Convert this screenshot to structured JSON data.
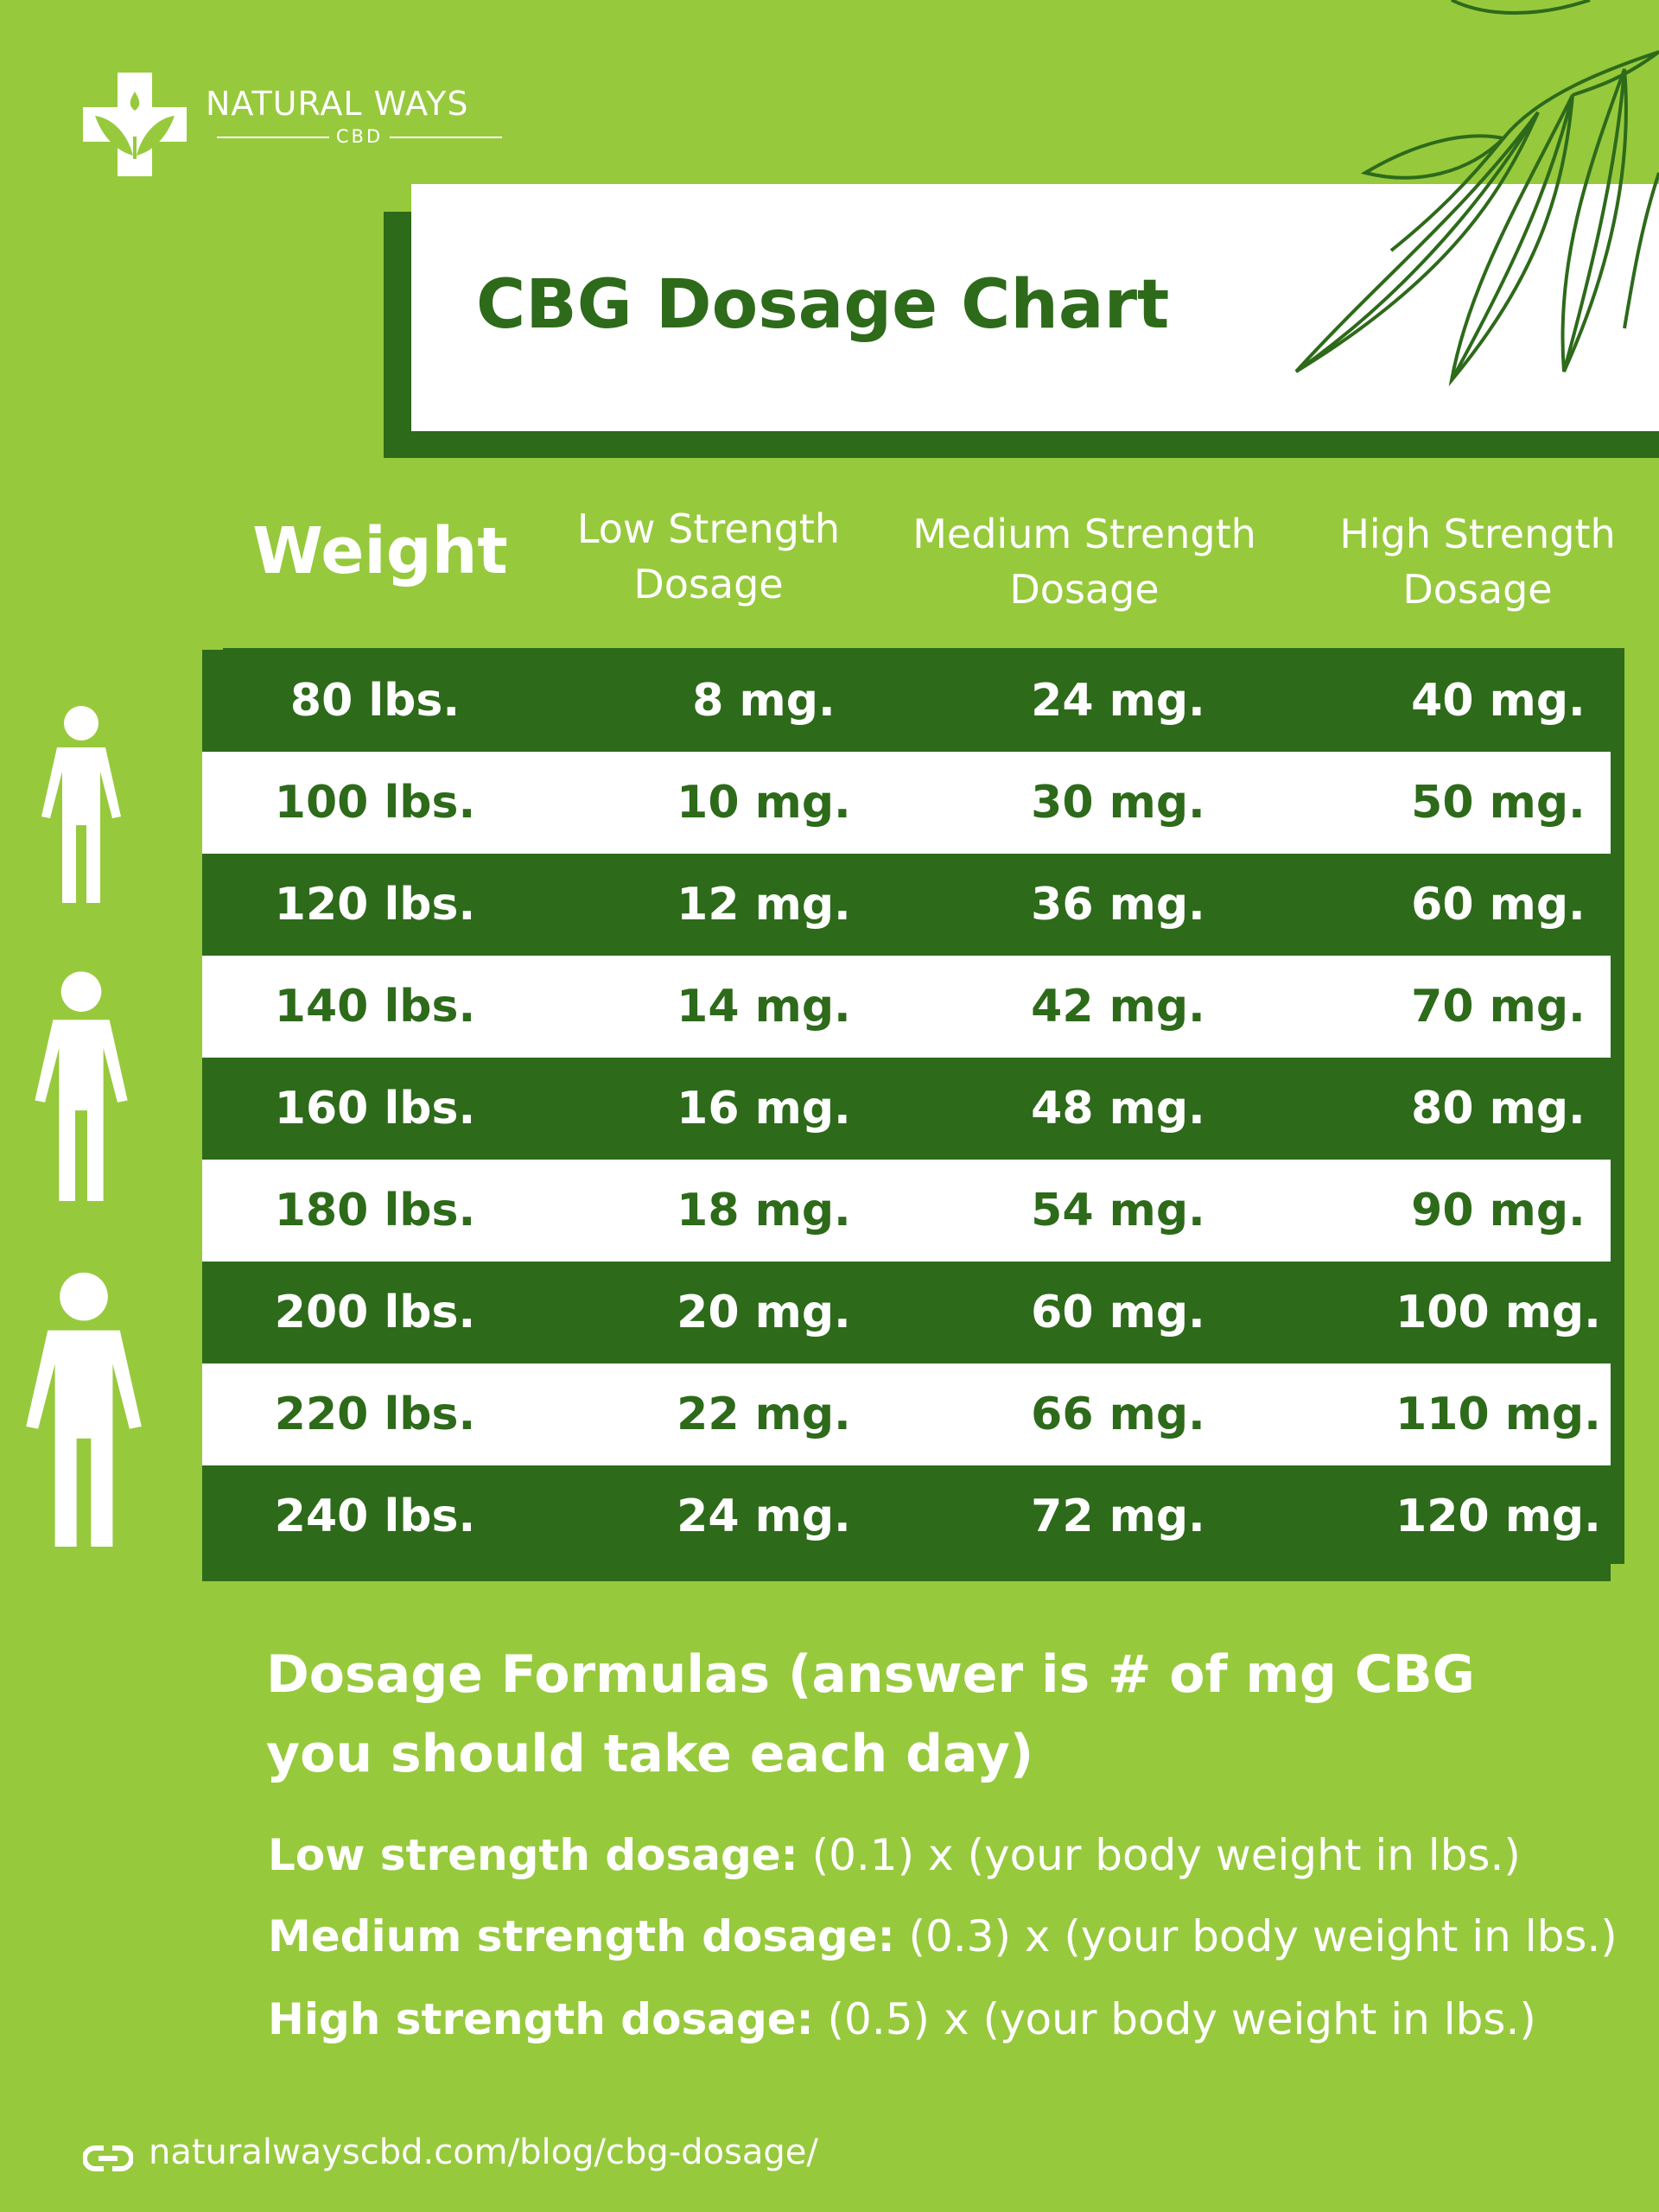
{
  "brand": {
    "name": "NATURAL WAYS",
    "sub": "CBD"
  },
  "title": "CBG Dosage Chart",
  "headers": {
    "weight": "Weight",
    "low_1": "Low Strength",
    "low_2": "Dosage",
    "med_1": "Medium Strength",
    "med_2": "Dosage",
    "high_1": "High Strength",
    "high_2": "Dosage"
  },
  "rows": [
    {
      "weight": "80 lbs.",
      "low": "8 mg.",
      "med": "24 mg.",
      "high": "40 mg."
    },
    {
      "weight": "100 lbs.",
      "low": "10 mg.",
      "med": "30 mg.",
      "high": "50 mg."
    },
    {
      "weight": "120 lbs.",
      "low": "12 mg.",
      "med": "36 mg.",
      "high": "60 mg."
    },
    {
      "weight": "140 lbs.",
      "low": "14 mg.",
      "med": "42 mg.",
      "high": "70 mg."
    },
    {
      "weight": "160 lbs.",
      "low": "16 mg.",
      "med": "48 mg.",
      "high": "80 mg."
    },
    {
      "weight": "180 lbs.",
      "low": "18 mg.",
      "med": "54 mg.",
      "high": "90 mg."
    },
    {
      "weight": "200 lbs.",
      "low": "20 mg.",
      "med": "60 mg.",
      "high": "100 mg."
    },
    {
      "weight": "220 lbs.",
      "low": "22 mg.",
      "med": "66 mg.",
      "high": "110 mg."
    },
    {
      "weight": "240 lbs.",
      "low": "24 mg.",
      "med": "72 mg.",
      "high": "120 mg."
    }
  ],
  "formulas": {
    "title": "Dosage Formulas (answer is # of mg CBG you should take each day)",
    "low_label": "Low strength dosage:",
    "low_text": " (0.1) x (your body weight in lbs.)",
    "med_label": "Medium strength dosage:",
    "med_text": " (0.3) x (your body weight in lbs.)",
    "high_label": "High strength dosage:",
    "high_text": " (0.5) x (your body weight in lbs.)"
  },
  "footer": {
    "url": "naturalwayscbd.com/blog/cbg-dosage/"
  },
  "colors": {
    "background": "#97c93d",
    "dark_green": "#2d6a1a",
    "white": "#ffffff"
  },
  "icons": [
    "logo-cross-leaf-icon",
    "leaf-illustration",
    "person-icon",
    "link-icon"
  ]
}
